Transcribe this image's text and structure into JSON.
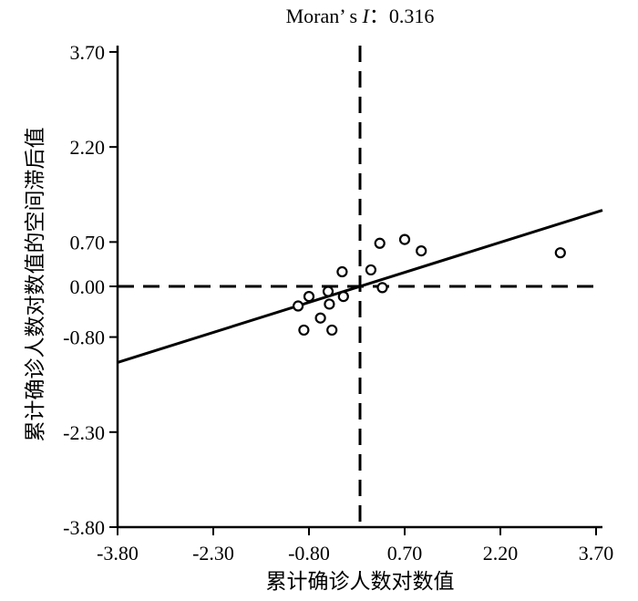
{
  "chart_data": {
    "type": "scatter",
    "title_prefix": "Moran’ s ",
    "title_italic": "I",
    "title_suffix": "：0.316",
    "xlabel": "累计确诊人数对数值",
    "ylabel": "累计确诊人数对数值的空间滞后值",
    "xlim": [
      -3.8,
      3.8
    ],
    "ylim": [
      -3.8,
      3.8
    ],
    "x_ticks": [
      -3.8,
      -2.3,
      -0.8,
      0.7,
      2.2,
      3.7
    ],
    "x_tick_labels": [
      "-3.80",
      "-2.30",
      "-0.80",
      "0.70",
      "2.20",
      "3.70"
    ],
    "y_ticks": [
      3.7,
      2.2,
      0.7,
      0.0,
      -0.8,
      -2.3,
      -3.8
    ],
    "y_tick_labels": [
      "3.70",
      "2.20",
      "0.70",
      "0.00",
      "-0.80",
      "-2.30",
      "-3.80"
    ],
    "grid": false,
    "points": [
      {
        "x": -0.97,
        "y": -0.31
      },
      {
        "x": -0.88,
        "y": -0.69
      },
      {
        "x": -0.8,
        "y": -0.16
      },
      {
        "x": -0.62,
        "y": -0.5
      },
      {
        "x": -0.5,
        "y": -0.08
      },
      {
        "x": -0.48,
        "y": -0.28
      },
      {
        "x": -0.44,
        "y": -0.69
      },
      {
        "x": -0.28,
        "y": 0.23
      },
      {
        "x": -0.26,
        "y": -0.16
      },
      {
        "x": 0.17,
        "y": 0.26
      },
      {
        "x": 0.31,
        "y": 0.68
      },
      {
        "x": 0.35,
        "y": -0.02
      },
      {
        "x": 0.7,
        "y": 0.74
      },
      {
        "x": 0.96,
        "y": 0.56
      },
      {
        "x": 3.14,
        "y": 0.53
      }
    ],
    "regression_line": {
      "slope": 0.316,
      "intercept": 0.0
    },
    "reference_lines": {
      "x": 0.0,
      "y": 0.0
    }
  }
}
